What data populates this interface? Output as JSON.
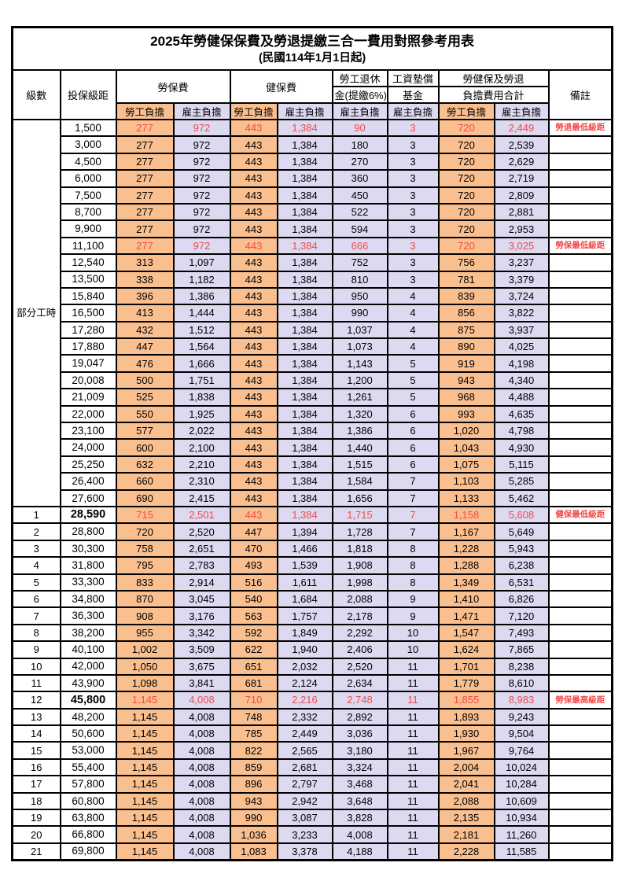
{
  "page": {
    "title": "2025年勞健保保費及勞退提繳三合一費用對照參考用表",
    "subtitle": "(民國114年1月1日起)"
  },
  "header": {
    "level": "級數",
    "bracket": "投保級距",
    "labor_insurance": "勞保費",
    "health_insurance": "健保費",
    "pension_line1": "勞工退休",
    "pension_line2": "金(提繳6%)",
    "wage_fund_line1": "工資墊償",
    "wage_fund_line2": "基金",
    "total_line1": "勞健保及勞退",
    "total_line2": "負擔費用合計",
    "note": "備註",
    "employee_share": "勞工負擔",
    "employer_share": "雇主負擔"
  },
  "part_time_label": "部分工時",
  "colors": {
    "employee_bg": "#FABF8F",
    "employer_bg": "#DCD9F0",
    "highlight_red": "#F24A4A"
  },
  "rows": [
    {
      "level": "",
      "bracket": "1,500",
      "values": [
        "277",
        "972",
        "443",
        "1,384",
        "90",
        "3",
        "720",
        "2,449"
      ],
      "note": "勞退最低級距",
      "red": true,
      "bold": false
    },
    {
      "level": "",
      "bracket": "3,000",
      "values": [
        "277",
        "972",
        "443",
        "1,384",
        "180",
        "3",
        "720",
        "2,539"
      ],
      "note": "",
      "red": false,
      "bold": false
    },
    {
      "level": "",
      "bracket": "4,500",
      "values": [
        "277",
        "972",
        "443",
        "1,384",
        "270",
        "3",
        "720",
        "2,629"
      ],
      "note": "",
      "red": false,
      "bold": false
    },
    {
      "level": "",
      "bracket": "6,000",
      "values": [
        "277",
        "972",
        "443",
        "1,384",
        "360",
        "3",
        "720",
        "2,719"
      ],
      "note": "",
      "red": false,
      "bold": false
    },
    {
      "level": "",
      "bracket": "7,500",
      "values": [
        "277",
        "972",
        "443",
        "1,384",
        "450",
        "3",
        "720",
        "2,809"
      ],
      "note": "",
      "red": false,
      "bold": false
    },
    {
      "level": "",
      "bracket": "8,700",
      "values": [
        "277",
        "972",
        "443",
        "1,384",
        "522",
        "3",
        "720",
        "2,881"
      ],
      "note": "",
      "red": false,
      "bold": false
    },
    {
      "level": "",
      "bracket": "9,900",
      "values": [
        "277",
        "972",
        "443",
        "1,384",
        "594",
        "3",
        "720",
        "2,953"
      ],
      "note": "",
      "red": false,
      "bold": false
    },
    {
      "level": "",
      "bracket": "11,100",
      "values": [
        "277",
        "972",
        "443",
        "1,384",
        "666",
        "3",
        "720",
        "3,025"
      ],
      "note": "勞保最低級距",
      "red": true,
      "bold": false
    },
    {
      "level": "",
      "bracket": "12,540",
      "values": [
        "313",
        "1,097",
        "443",
        "1,384",
        "752",
        "3",
        "756",
        "3,237"
      ],
      "note": "",
      "red": false,
      "bold": false
    },
    {
      "level": "",
      "bracket": "13,500",
      "values": [
        "338",
        "1,182",
        "443",
        "1,384",
        "810",
        "3",
        "781",
        "3,379"
      ],
      "note": "",
      "red": false,
      "bold": false
    },
    {
      "level": "",
      "bracket": "15,840",
      "values": [
        "396",
        "1,386",
        "443",
        "1,384",
        "950",
        "4",
        "839",
        "3,724"
      ],
      "note": "",
      "red": false,
      "bold": false
    },
    {
      "level": "",
      "bracket": "16,500",
      "values": [
        "413",
        "1,444",
        "443",
        "1,384",
        "990",
        "4",
        "856",
        "3,822"
      ],
      "note": "",
      "red": false,
      "bold": false
    },
    {
      "level": "",
      "bracket": "17,280",
      "values": [
        "432",
        "1,512",
        "443",
        "1,384",
        "1,037",
        "4",
        "875",
        "3,937"
      ],
      "note": "",
      "red": false,
      "bold": false
    },
    {
      "level": "",
      "bracket": "17,880",
      "values": [
        "447",
        "1,564",
        "443",
        "1,384",
        "1,073",
        "4",
        "890",
        "4,025"
      ],
      "note": "",
      "red": false,
      "bold": false
    },
    {
      "level": "",
      "bracket": "19,047",
      "values": [
        "476",
        "1,666",
        "443",
        "1,384",
        "1,143",
        "5",
        "919",
        "4,198"
      ],
      "note": "",
      "red": false,
      "bold": false
    },
    {
      "level": "",
      "bracket": "20,008",
      "values": [
        "500",
        "1,751",
        "443",
        "1,384",
        "1,200",
        "5",
        "943",
        "4,340"
      ],
      "note": "",
      "red": false,
      "bold": false
    },
    {
      "level": "",
      "bracket": "21,009",
      "values": [
        "525",
        "1,838",
        "443",
        "1,384",
        "1,261",
        "5",
        "968",
        "4,488"
      ],
      "note": "",
      "red": false,
      "bold": false
    },
    {
      "level": "",
      "bracket": "22,000",
      "values": [
        "550",
        "1,925",
        "443",
        "1,384",
        "1,320",
        "6",
        "993",
        "4,635"
      ],
      "note": "",
      "red": false,
      "bold": false
    },
    {
      "level": "",
      "bracket": "23,100",
      "values": [
        "577",
        "2,022",
        "443",
        "1,384",
        "1,386",
        "6",
        "1,020",
        "4,798"
      ],
      "note": "",
      "red": false,
      "bold": false
    },
    {
      "level": "",
      "bracket": "24,000",
      "values": [
        "600",
        "2,100",
        "443",
        "1,384",
        "1,440",
        "6",
        "1,043",
        "4,930"
      ],
      "note": "",
      "red": false,
      "bold": false
    },
    {
      "level": "",
      "bracket": "25,250",
      "values": [
        "632",
        "2,210",
        "443",
        "1,384",
        "1,515",
        "6",
        "1,075",
        "5,115"
      ],
      "note": "",
      "red": false,
      "bold": false
    },
    {
      "level": "",
      "bracket": "26,400",
      "values": [
        "660",
        "2,310",
        "443",
        "1,384",
        "1,584",
        "7",
        "1,103",
        "5,285"
      ],
      "note": "",
      "red": false,
      "bold": false
    },
    {
      "level": "",
      "bracket": "27,600",
      "values": [
        "690",
        "2,415",
        "443",
        "1,384",
        "1,656",
        "7",
        "1,133",
        "5,462"
      ],
      "note": "",
      "red": false,
      "bold": false
    },
    {
      "level": "1",
      "bracket": "28,590",
      "values": [
        "715",
        "2,501",
        "443",
        "1,384",
        "1,715",
        "7",
        "1,158",
        "5,608"
      ],
      "note": "健保最低級距",
      "red": true,
      "bold": true
    },
    {
      "level": "2",
      "bracket": "28,800",
      "values": [
        "720",
        "2,520",
        "447",
        "1,394",
        "1,728",
        "7",
        "1,167",
        "5,649"
      ],
      "note": "",
      "red": false,
      "bold": false
    },
    {
      "level": "3",
      "bracket": "30,300",
      "values": [
        "758",
        "2,651",
        "470",
        "1,466",
        "1,818",
        "8",
        "1,228",
        "5,943"
      ],
      "note": "",
      "red": false,
      "bold": false
    },
    {
      "level": "4",
      "bracket": "31,800",
      "values": [
        "795",
        "2,783",
        "493",
        "1,539",
        "1,908",
        "8",
        "1,288",
        "6,238"
      ],
      "note": "",
      "red": false,
      "bold": false
    },
    {
      "level": "5",
      "bracket": "33,300",
      "values": [
        "833",
        "2,914",
        "516",
        "1,611",
        "1,998",
        "8",
        "1,349",
        "6,531"
      ],
      "note": "",
      "red": false,
      "bold": false
    },
    {
      "level": "6",
      "bracket": "34,800",
      "values": [
        "870",
        "3,045",
        "540",
        "1,684",
        "2,088",
        "9",
        "1,410",
        "6,826"
      ],
      "note": "",
      "red": false,
      "bold": false
    },
    {
      "level": "7",
      "bracket": "36,300",
      "values": [
        "908",
        "3,176",
        "563",
        "1,757",
        "2,178",
        "9",
        "1,471",
        "7,120"
      ],
      "note": "",
      "red": false,
      "bold": false
    },
    {
      "level": "8",
      "bracket": "38,200",
      "values": [
        "955",
        "3,342",
        "592",
        "1,849",
        "2,292",
        "10",
        "1,547",
        "7,493"
      ],
      "note": "",
      "red": false,
      "bold": false
    },
    {
      "level": "9",
      "bracket": "40,100",
      "values": [
        "1,002",
        "3,509",
        "622",
        "1,940",
        "2,406",
        "10",
        "1,624",
        "7,865"
      ],
      "note": "",
      "red": false,
      "bold": false
    },
    {
      "level": "10",
      "bracket": "42,000",
      "values": [
        "1,050",
        "3,675",
        "651",
        "2,032",
        "2,520",
        "11",
        "1,701",
        "8,238"
      ],
      "note": "",
      "red": false,
      "bold": false
    },
    {
      "level": "11",
      "bracket": "43,900",
      "values": [
        "1,098",
        "3,841",
        "681",
        "2,124",
        "2,634",
        "11",
        "1,779",
        "8,610"
      ],
      "note": "",
      "red": false,
      "bold": false
    },
    {
      "level": "12",
      "bracket": "45,800",
      "values": [
        "1,145",
        "4,008",
        "710",
        "2,216",
        "2,748",
        "11",
        "1,855",
        "8,983"
      ],
      "note": "勞保最高級距",
      "red": true,
      "bold": true
    },
    {
      "level": "13",
      "bracket": "48,200",
      "values": [
        "1,145",
        "4,008",
        "748",
        "2,332",
        "2,892",
        "11",
        "1,893",
        "9,243"
      ],
      "note": "",
      "red": false,
      "bold": false
    },
    {
      "level": "14",
      "bracket": "50,600",
      "values": [
        "1,145",
        "4,008",
        "785",
        "2,449",
        "3,036",
        "11",
        "1,930",
        "9,504"
      ],
      "note": "",
      "red": false,
      "bold": false
    },
    {
      "level": "15",
      "bracket": "53,000",
      "values": [
        "1,145",
        "4,008",
        "822",
        "2,565",
        "3,180",
        "11",
        "1,967",
        "9,764"
      ],
      "note": "",
      "red": false,
      "bold": false
    },
    {
      "level": "16",
      "bracket": "55,400",
      "values": [
        "1,145",
        "4,008",
        "859",
        "2,681",
        "3,324",
        "11",
        "2,004",
        "10,024"
      ],
      "note": "",
      "red": false,
      "bold": false
    },
    {
      "level": "17",
      "bracket": "57,800",
      "values": [
        "1,145",
        "4,008",
        "896",
        "2,797",
        "3,468",
        "11",
        "2,041",
        "10,284"
      ],
      "note": "",
      "red": false,
      "bold": false
    },
    {
      "level": "18",
      "bracket": "60,800",
      "values": [
        "1,145",
        "4,008",
        "943",
        "2,942",
        "3,648",
        "11",
        "2,088",
        "10,609"
      ],
      "note": "",
      "red": false,
      "bold": false
    },
    {
      "level": "19",
      "bracket": "63,800",
      "values": [
        "1,145",
        "4,008",
        "990",
        "3,087",
        "3,828",
        "11",
        "2,135",
        "10,934"
      ],
      "note": "",
      "red": false,
      "bold": false
    },
    {
      "level": "20",
      "bracket": "66,800",
      "values": [
        "1,145",
        "4,008",
        "1,036",
        "3,233",
        "4,008",
        "11",
        "2,181",
        "11,260"
      ],
      "note": "",
      "red": false,
      "bold": false
    },
    {
      "level": "21",
      "bracket": "69,800",
      "values": [
        "1,145",
        "4,008",
        "1,083",
        "3,378",
        "4,188",
        "11",
        "2,228",
        "11,585"
      ],
      "note": "",
      "red": false,
      "bold": false
    }
  ]
}
